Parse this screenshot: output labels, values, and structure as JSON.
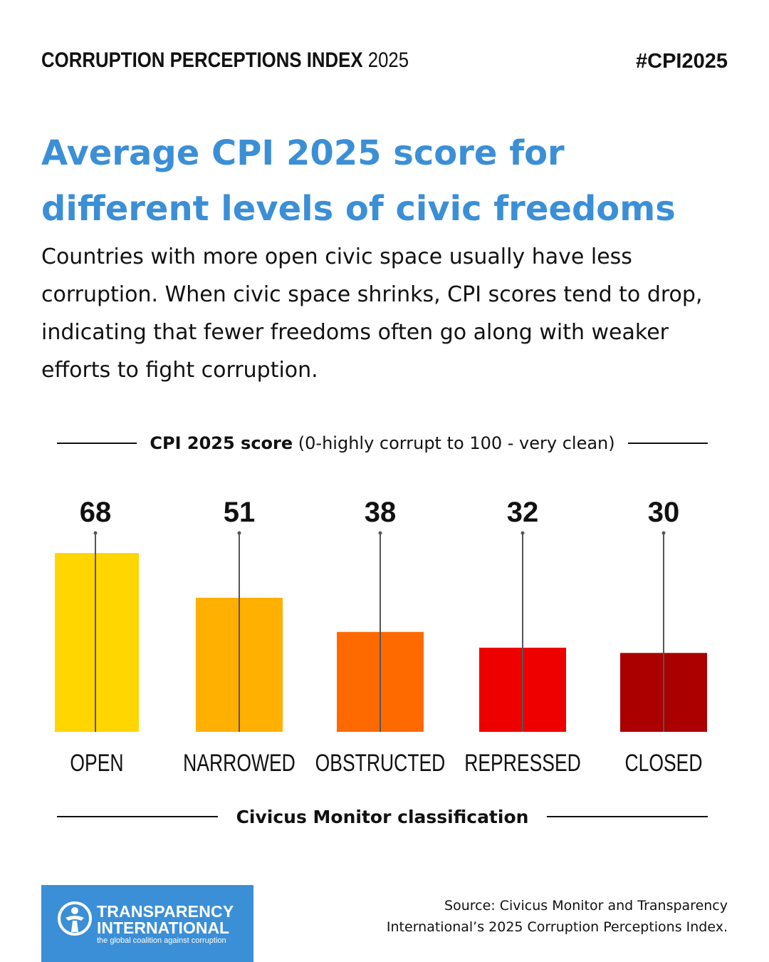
{
  "header": {
    "index_label": "CORRUPTION PERCEPTIONS INDEX",
    "index_year": "2025",
    "hashtag": "#CPI2025"
  },
  "headline": {
    "line1": "Average CPI 2025 score for",
    "line2": "different levels of civic freedoms"
  },
  "intro": "Countries with more open civic space usually have less corruption. When civic space shrinks, CPI scores tend to drop, indicating that fewer freedoms often go along with weaker efforts to fight corruption.",
  "colors": {
    "headline": "#3b8fd6",
    "brand": "#3b8fd6",
    "open": "#ffd600",
    "narrowed": "#ffb000",
    "obstructed": "#ff6a00",
    "repressed": "#ee0000",
    "closed": "#aa0000"
  },
  "chart_data": {
    "type": "bar",
    "title": "Average CPI 2025 score for different levels of civic freedoms",
    "ylabel_bold": "CPI 2025 score",
    "ylabel_rest": "(0-highly corrupt to 100 - very clean)",
    "xlabel": "Civicus Monitor classification",
    "categories": [
      "OPEN",
      "NARROWED",
      "OBSTRUCTED",
      "REPRESSED",
      "CLOSED"
    ],
    "values": [
      68,
      51,
      38,
      32,
      30
    ],
    "bar_colors": [
      "#ffd600",
      "#ffb000",
      "#ff6a00",
      "#ee0000",
      "#aa0000"
    ],
    "ylim": [
      0,
      100
    ],
    "grid": false,
    "legend": "none"
  },
  "logo": {
    "line1": "TRANSPARENCY",
    "line2": "INTERNATIONAL",
    "tagline": "the global coalition against corruption",
    "icon": "globe-figure-icon"
  },
  "source": {
    "line1": "Source: Civicus Monitor and Transparency",
    "line2": "International’s 2025 Corruption Perceptions Index."
  }
}
